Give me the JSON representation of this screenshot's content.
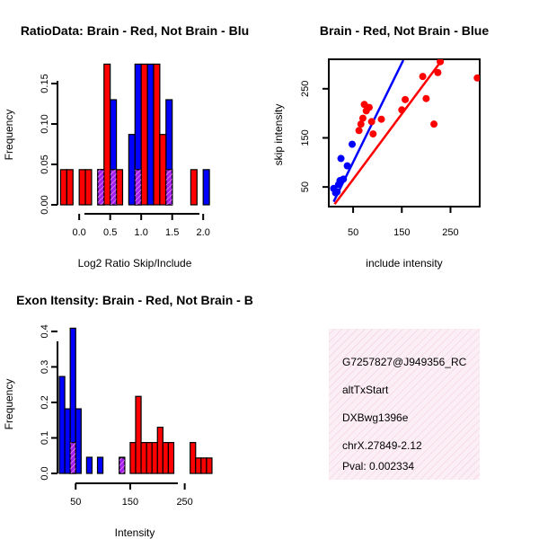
{
  "colors": {
    "red": "#ff0000",
    "blue": "#0000ff",
    "purple": "#a020f0",
    "hatch": "#ee82ee",
    "info_bg": "#f8e4ee",
    "pval": "#8b0000"
  },
  "chart_data": [
    {
      "type": "bar",
      "title": "RatioData: Brain - Red, Not Brain - Blu",
      "xlabel": "Log2 Ratio Skip/Include",
      "ylabel": "Frequency",
      "xticks": [
        "0.0",
        "0.5",
        "1.0",
        "1.5",
        "2.0"
      ],
      "yticks": [
        "0.00",
        "0.05",
        "0.10",
        "0.15"
      ],
      "bin_width": 0.1,
      "xlim": [
        -0.35,
        2.2
      ],
      "ylim": [
        0,
        0.18
      ],
      "series": [
        {
          "name": "Brain",
          "color": "red",
          "bins": [
            [
              -0.3,
              0.0435
            ],
            [
              -0.2,
              0.0435
            ],
            [
              0.0,
              0.0435
            ],
            [
              0.1,
              0.0435
            ],
            [
              0.3,
              0.0435
            ],
            [
              0.4,
              0.174
            ],
            [
              0.5,
              0.0435
            ],
            [
              0.6,
              0.0435
            ],
            [
              0.9,
              0.0435
            ],
            [
              1.0,
              0.174
            ],
            [
              1.2,
              0.174
            ],
            [
              1.3,
              0.087
            ],
            [
              1.4,
              0.0435
            ],
            [
              1.8,
              0.0435
            ]
          ]
        },
        {
          "name": "Not Brain",
          "color": "blue",
          "bins": [
            [
              0.3,
              0.0435
            ],
            [
              0.5,
              0.13
            ],
            [
              0.8,
              0.087
            ],
            [
              0.9,
              0.174
            ],
            [
              1.1,
              0.174
            ],
            [
              1.4,
              0.13
            ],
            [
              2.0,
              0.0435
            ]
          ]
        }
      ]
    },
    {
      "type": "scatter",
      "title": "Brain - Red, Not Brain - Blue",
      "xlabel": "include intensity",
      "ylabel": "skip intensity",
      "xticks": [
        "50",
        "150",
        "250"
      ],
      "yticks": [
        "50",
        "150",
        "250"
      ],
      "xlim": [
        0,
        310
      ],
      "ylim": [
        10,
        310
      ],
      "series": [
        {
          "name": "Brain",
          "color": "red",
          "points": [
            [
              62,
              165
            ],
            [
              66,
              178
            ],
            [
              70,
              190
            ],
            [
              73,
              218
            ],
            [
              77,
              205
            ],
            [
              83,
              212
            ],
            [
              88,
              183
            ],
            [
              91,
              158
            ],
            [
              108,
              188
            ],
            [
              150,
              207
            ],
            [
              157,
              228
            ],
            [
              193,
              275
            ],
            [
              200,
              230
            ],
            [
              216,
              178
            ],
            [
              224,
              283
            ],
            [
              229,
              305
            ],
            [
              305,
              272
            ]
          ],
          "fit": [
            [
              12,
              15
            ],
            [
              232,
              308
            ]
          ]
        },
        {
          "name": "Not Brain",
          "color": "blue",
          "points": [
            [
              10,
              47
            ],
            [
              14,
              38
            ],
            [
              17,
              40
            ],
            [
              20,
              55
            ],
            [
              23,
              63
            ],
            [
              25,
              108
            ],
            [
              30,
              66
            ],
            [
              38,
              93
            ],
            [
              48,
              137
            ]
          ],
          "fit": [
            [
              10,
              20
            ],
            [
              153,
              308
            ]
          ]
        }
      ]
    },
    {
      "type": "bar",
      "title": "Exon Itensity: Brain - Red, Not Brain - B",
      "xlabel": "Intensity",
      "ylabel": "Frequency",
      "xticks": [
        "50",
        "150",
        "250"
      ],
      "yticks": [
        "0.0",
        "0.1",
        "0.2",
        "0.3",
        "0.4"
      ],
      "bin_width": 10,
      "xlim": [
        15,
        305
      ],
      "ylim": [
        0,
        0.42
      ],
      "series": [
        {
          "name": "Brain",
          "color": "red",
          "bins": [
            [
              40,
              0.087
            ],
            [
              130,
              0.0435
            ],
            [
              150,
              0.087
            ],
            [
              160,
              0.217
            ],
            [
              170,
              0.087
            ],
            [
              180,
              0.087
            ],
            [
              190,
              0.087
            ],
            [
              200,
              0.13
            ],
            [
              210,
              0.087
            ],
            [
              220,
              0.087
            ],
            [
              260,
              0.087
            ],
            [
              270,
              0.0435
            ],
            [
              280,
              0.0435
            ],
            [
              290,
              0.0435
            ]
          ]
        },
        {
          "name": "Not Brain",
          "color": "blue",
          "bins": [
            [
              20,
              0.273
            ],
            [
              30,
              0.182
            ],
            [
              40,
              0.409
            ],
            [
              50,
              0.182
            ],
            [
              70,
              0.0455
            ],
            [
              90,
              0.0455
            ],
            [
              130,
              0.0455
            ]
          ]
        }
      ]
    }
  ],
  "info_panel": {
    "probe": "G7257827@J949356_RC",
    "event": "altTxStart",
    "gene": "DXBwg1396e",
    "location": "chrX.27849-2.12",
    "pval": "Pval: 0.002334"
  }
}
